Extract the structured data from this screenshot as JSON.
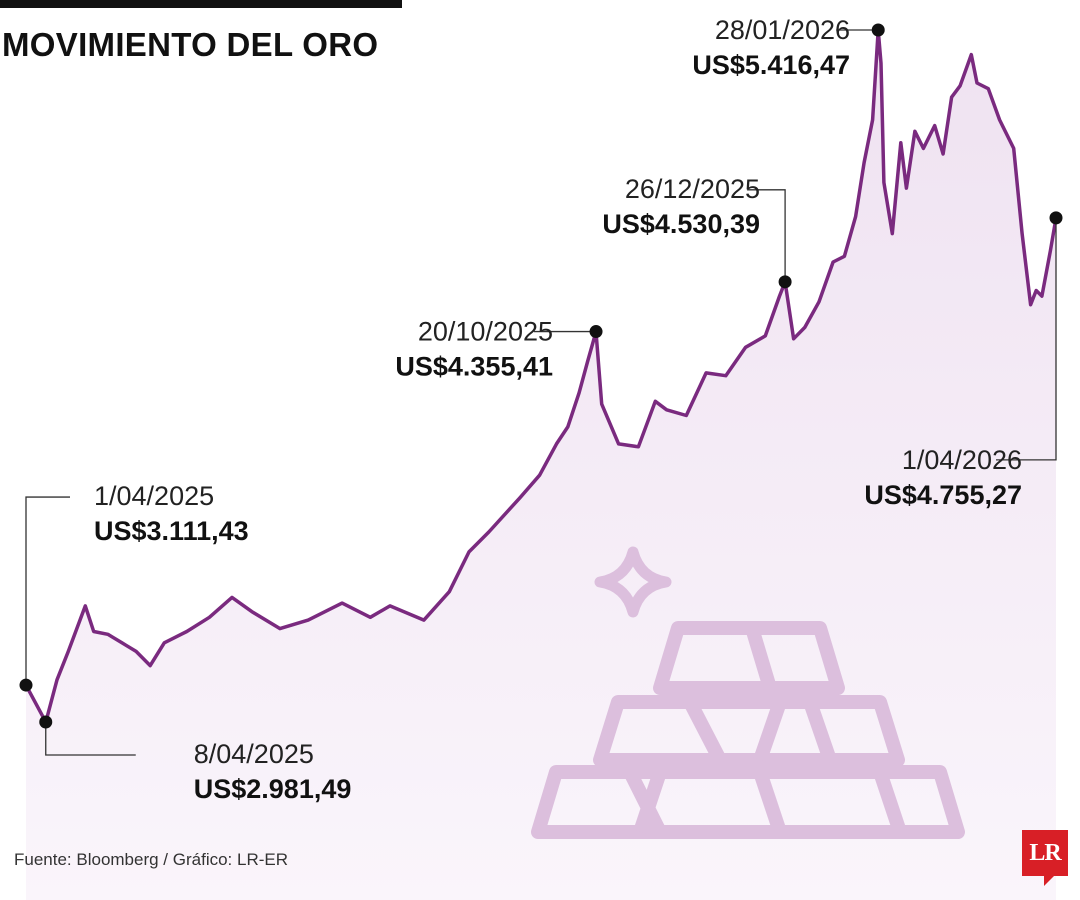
{
  "header": {
    "title": "MOVIMIENTO DEL ORO"
  },
  "footer": {
    "source": "Fuente: Bloomberg / Gráfico: LR-ER",
    "logo": "LR"
  },
  "colors": {
    "line": "#7a2a7f",
    "area": "#f3e9f4",
    "illustration": "#dcbfdd",
    "logo": "#d81f26"
  },
  "illustration": {
    "icons": [
      "sparkle-icon",
      "gold-bars-icon"
    ]
  },
  "chart_data": {
    "type": "area",
    "title": "MOVIMIENTO DEL ORO",
    "xlabel": "",
    "ylabel": "",
    "unit": "US$",
    "x_range": [
      "2025-04-01",
      "2026-04-01"
    ],
    "ylim": [
      2700,
      5450
    ],
    "grid": false,
    "series": [
      {
        "values": [
          [
            "2025-04-01",
            3111
          ],
          [
            "2025-04-08",
            2981
          ],
          [
            "2025-04-12",
            3130
          ],
          [
            "2025-04-16",
            3230
          ],
          [
            "2025-04-22",
            3390
          ],
          [
            "2025-04-25",
            3300
          ],
          [
            "2025-04-30",
            3290
          ],
          [
            "2025-05-05",
            3260
          ],
          [
            "2025-05-10",
            3230
          ],
          [
            "2025-05-15",
            3180
          ],
          [
            "2025-05-20",
            3260
          ],
          [
            "2025-05-28",
            3300
          ],
          [
            "2025-06-05",
            3350
          ],
          [
            "2025-06-13",
            3420
          ],
          [
            "2025-06-20",
            3370
          ],
          [
            "2025-06-30",
            3310
          ],
          [
            "2025-07-10",
            3340
          ],
          [
            "2025-07-22",
            3400
          ],
          [
            "2025-08-01",
            3350
          ],
          [
            "2025-08-08",
            3390
          ],
          [
            "2025-08-20",
            3340
          ],
          [
            "2025-08-29",
            3440
          ],
          [
            "2025-09-05",
            3580
          ],
          [
            "2025-09-12",
            3650
          ],
          [
            "2025-09-23",
            3770
          ],
          [
            "2025-09-30",
            3850
          ],
          [
            "2025-10-06",
            3960
          ],
          [
            "2025-10-10",
            4020
          ],
          [
            "2025-10-14",
            4140
          ],
          [
            "2025-10-17",
            4250
          ],
          [
            "2025-10-20",
            4355
          ],
          [
            "2025-10-22",
            4100
          ],
          [
            "2025-10-28",
            3960
          ],
          [
            "2025-11-04",
            3950
          ],
          [
            "2025-11-10",
            4110
          ],
          [
            "2025-11-14",
            4080
          ],
          [
            "2025-11-21",
            4060
          ],
          [
            "2025-11-28",
            4210
          ],
          [
            "2025-12-05",
            4200
          ],
          [
            "2025-12-12",
            4300
          ],
          [
            "2025-12-19",
            4340
          ],
          [
            "2025-12-24",
            4480
          ],
          [
            "2025-12-26",
            4530
          ],
          [
            "2025-12-29",
            4330
          ],
          [
            "2026-01-02",
            4370
          ],
          [
            "2026-01-07",
            4460
          ],
          [
            "2026-01-12",
            4600
          ],
          [
            "2026-01-16",
            4620
          ],
          [
            "2026-01-20",
            4760
          ],
          [
            "2026-01-23",
            4950
          ],
          [
            "2026-01-26",
            5100
          ],
          [
            "2026-01-28",
            5416
          ],
          [
            "2026-01-29",
            5300
          ],
          [
            "2026-01-30",
            4880
          ],
          [
            "2026-02-02",
            4700
          ],
          [
            "2026-02-05",
            5020
          ],
          [
            "2026-02-07",
            4860
          ],
          [
            "2026-02-10",
            5060
          ],
          [
            "2026-02-13",
            5000
          ],
          [
            "2026-02-17",
            5080
          ],
          [
            "2026-02-20",
            4980
          ],
          [
            "2026-02-23",
            5180
          ],
          [
            "2026-02-26",
            5220
          ],
          [
            "2026-03-02",
            5330
          ],
          [
            "2026-03-04",
            5230
          ],
          [
            "2026-03-08",
            5210
          ],
          [
            "2026-03-12",
            5100
          ],
          [
            "2026-03-17",
            5000
          ],
          [
            "2026-03-20",
            4700
          ],
          [
            "2026-03-23",
            4450
          ],
          [
            "2026-03-25",
            4500
          ],
          [
            "2026-03-27",
            4480
          ],
          [
            "2026-03-30",
            4640
          ],
          [
            "2026-04-01",
            4755
          ]
        ]
      }
    ],
    "annotations": [
      {
        "date": "2025-04-01",
        "value": 3111.43,
        "date_label": "1/04/2025",
        "value_label": "US$3.111,43"
      },
      {
        "date": "2025-04-08",
        "value": 2981.49,
        "date_label": "8/04/2025",
        "value_label": "US$2.981,49"
      },
      {
        "date": "2025-10-20",
        "value": 4355.41,
        "date_label": "20/10/2025",
        "value_label": "US$4.355,41"
      },
      {
        "date": "2025-12-26",
        "value": 4530.39,
        "date_label": "26/12/2025",
        "value_label": "US$4.530,39"
      },
      {
        "date": "2026-01-28",
        "value": 5416.47,
        "date_label": "28/01/2026",
        "value_label": "US$5.416,47"
      },
      {
        "date": "2026-04-01",
        "value": 4755.27,
        "date_label": "1/04/2026",
        "value_label": "US$4.755,27"
      }
    ]
  }
}
